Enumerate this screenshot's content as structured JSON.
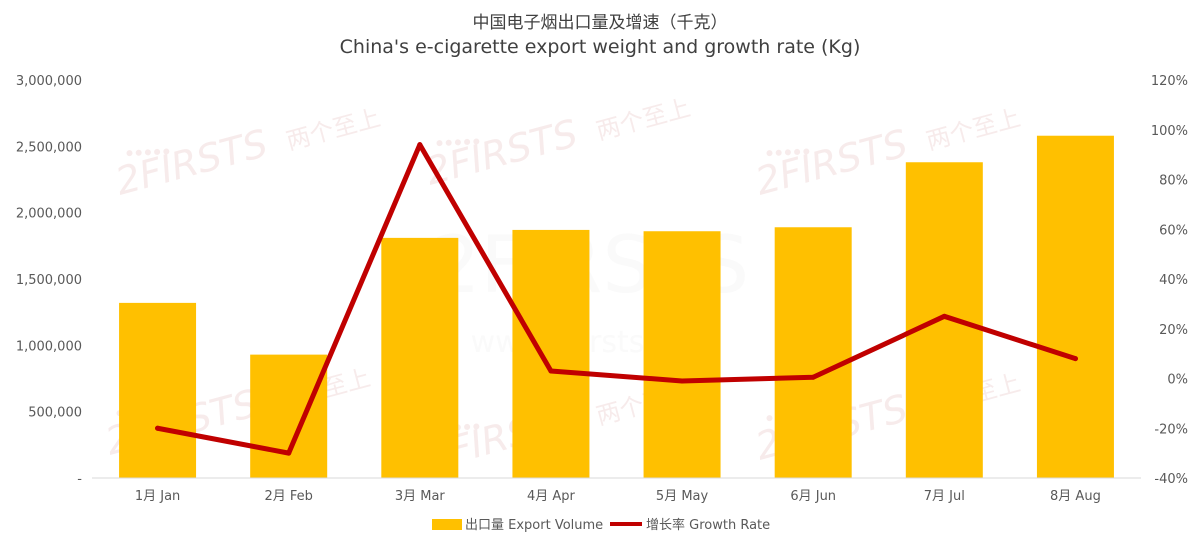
{
  "chart_data": {
    "type": "bar+line",
    "title_cn": "中国电子烟出口量及增速（千克）",
    "title_en": "China's e-cigarette export weight and growth rate (Kg)",
    "categories": [
      "1月 Jan",
      "2月 Feb",
      "3月 Mar",
      "4月 Apr",
      "5月 May",
      "6月 Jun",
      "7月 Jul",
      "8月 Aug"
    ],
    "series": [
      {
        "name": "出口量 Export Volume",
        "type": "bar",
        "axis": "left",
        "color": "#FFC000",
        "values": [
          1320000,
          930000,
          1810000,
          1870000,
          1860000,
          1890000,
          2380000,
          2580000
        ]
      },
      {
        "name": "增长率 Growth Rate",
        "type": "line",
        "axis": "right",
        "color": "#C00000",
        "values": [
          -20,
          -30,
          94,
          3,
          -1,
          0.5,
          25,
          8
        ]
      }
    ],
    "y_left": {
      "min": 0,
      "max": 3000000,
      "ticks": [
        0,
        500000,
        1000000,
        1500000,
        2000000,
        2500000,
        3000000
      ],
      "tick_labels": [
        "-",
        "500,000",
        "1,000,000",
        "1,500,000",
        "2,000,000",
        "2,500,000",
        "3,000,000"
      ]
    },
    "y_right": {
      "min": -40,
      "max": 120,
      "ticks": [
        -40,
        -20,
        0,
        20,
        40,
        60,
        80,
        100,
        120
      ],
      "tick_labels": [
        "-40%",
        "-20%",
        "0%",
        "20%",
        "40%",
        "60%",
        "80%",
        "100%",
        "120%"
      ]
    },
    "legend_position": "bottom-center",
    "grid": false
  },
  "watermark": {
    "brand": "2FIRSTS",
    "brand_cn": "两个至上",
    "url": "www.2firsts.cn"
  }
}
